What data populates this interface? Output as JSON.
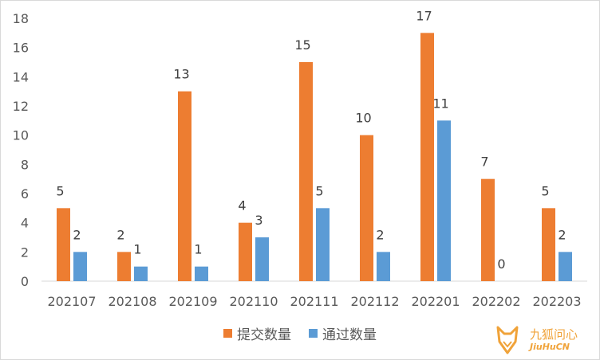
{
  "chart_data": {
    "type": "bar",
    "categories": [
      "202107",
      "202108",
      "202109",
      "202110",
      "202111",
      "202112",
      "202201",
      "202202",
      "202203"
    ],
    "series": [
      {
        "name": "提交数量",
        "values": [
          5,
          2,
          13,
          4,
          15,
          10,
          17,
          7,
          5
        ],
        "color": "#ed7d31"
      },
      {
        "name": "通过数量",
        "values": [
          2,
          1,
          1,
          3,
          5,
          2,
          11,
          0,
          2
        ],
        "color": "#5b9bd5"
      }
    ],
    "yticks": [
      "0",
      "2",
      "4",
      "6",
      "8",
      "10",
      "12",
      "14",
      "16",
      "18"
    ],
    "ylim": [
      0,
      18
    ],
    "title": "",
    "xlabel": "",
    "ylabel": "",
    "grid": false,
    "legend": "bottom"
  },
  "watermark": {
    "text": "九狐问心",
    "sub": "JiuHuCN",
    "icon": "fox-logo-icon",
    "color": "#f0a33a"
  }
}
